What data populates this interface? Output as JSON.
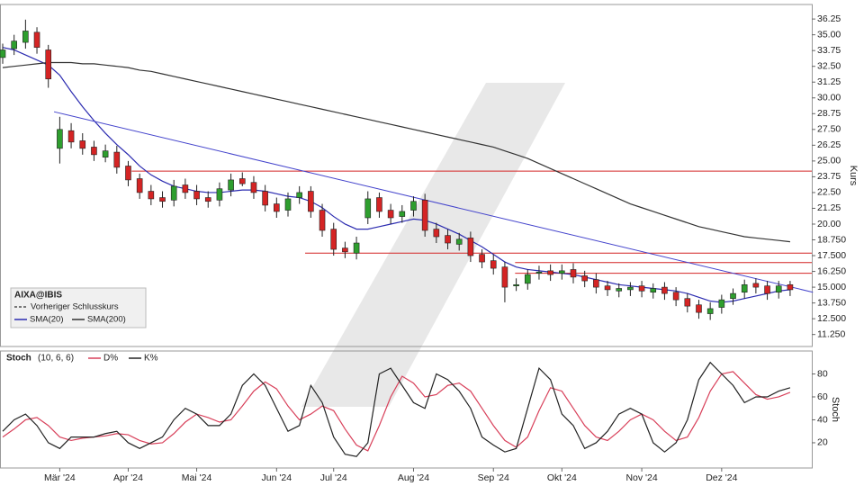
{
  "chart_data": [
    {
      "type": "candlestick",
      "title": "AIXA@IBIS",
      "y_label": "Kurs",
      "categories": [
        null,
        null,
        null,
        null,
        null,
        "Mär '24",
        null,
        null,
        null,
        null,
        null,
        "Apr '24",
        null,
        null,
        null,
        null,
        null,
        "Mai '24",
        null,
        null,
        null,
        null,
        null,
        null,
        "Jun '24",
        null,
        null,
        null,
        null,
        "Jul '24",
        null,
        null,
        null,
        null,
        null,
        null,
        "Aug '24",
        null,
        null,
        null,
        null,
        null,
        null,
        "Sep '24",
        null,
        null,
        null,
        null,
        null,
        "Okt '24",
        null,
        null,
        null,
        null,
        null,
        null,
        "Nov '24",
        null,
        null,
        null,
        null,
        null,
        null,
        "Dez '24",
        null,
        null,
        null,
        null,
        null,
        null
      ],
      "open": [
        33.2,
        33.9,
        34.4,
        35.2,
        33.8,
        26.0,
        27.4,
        26.6,
        26.1,
        25.3,
        25.7,
        24.6,
        23.6,
        22.6,
        22.1,
        21.9,
        23.1,
        22.6,
        22.1,
        21.9,
        22.7,
        23.6,
        23.3,
        22.6,
        21.6,
        21.1,
        22.1,
        22.6,
        21.1,
        19.6,
        18.1,
        17.7,
        20.5,
        22.1,
        21.1,
        20.6,
        21.1,
        21.9,
        19.6,
        19.1,
        18.4,
        18.9,
        17.6,
        17.1,
        16.6,
        15.1,
        15.3,
        16.1,
        16.3,
        16.1,
        16.4,
        15.9,
        15.6,
        15.1,
        14.7,
        14.8,
        15.1,
        14.6,
        15.0,
        14.6,
        14.1,
        13.6,
        12.9,
        13.4,
        14.1,
        14.6,
        15.3,
        15.1,
        14.6,
        15.2
      ],
      "high": [
        34.3,
        35.0,
        36.2,
        35.6,
        34.2,
        28.5,
        28.0,
        27.2,
        26.6,
        26.3,
        26.2,
        25.0,
        24.0,
        23.1,
        22.6,
        23.5,
        23.6,
        23.1,
        22.6,
        23.3,
        24.0,
        24.1,
        23.8,
        23.1,
        22.1,
        22.5,
        23.0,
        23.0,
        21.6,
        20.1,
        18.6,
        19.0,
        22.6,
        22.5,
        21.6,
        21.5,
        22.2,
        22.4,
        20.1,
        19.6,
        19.3,
        19.4,
        18.0,
        17.6,
        17.0,
        15.7,
        16.4,
        16.7,
        16.8,
        16.8,
        16.9,
        16.3,
        16.1,
        15.5,
        15.3,
        15.4,
        15.5,
        15.3,
        15.4,
        15.0,
        14.5,
        14.0,
        13.8,
        14.4,
        14.9,
        15.6,
        15.7,
        15.5,
        15.5,
        15.5
      ],
      "low": [
        32.7,
        33.4,
        33.9,
        33.5,
        30.8,
        24.8,
        26.0,
        25.5,
        25.0,
        24.9,
        24.0,
        23.0,
        22.0,
        21.5,
        21.3,
        21.4,
        22.0,
        21.5,
        21.3,
        21.4,
        22.2,
        23.0,
        22.0,
        21.0,
        20.5,
        20.6,
        21.6,
        20.5,
        19.0,
        17.5,
        17.3,
        17.2,
        20.0,
        20.5,
        20.0,
        20.1,
        20.6,
        19.0,
        18.5,
        18.0,
        17.9,
        17.0,
        16.5,
        16.0,
        13.8,
        14.7,
        14.8,
        15.6,
        15.5,
        15.6,
        15.3,
        15.0,
        14.5,
        14.3,
        14.2,
        14.3,
        14.2,
        14.1,
        14.0,
        13.5,
        13.0,
        12.5,
        12.4,
        12.9,
        13.6,
        14.1,
        14.5,
        14.0,
        14.1,
        14.3
      ],
      "close": [
        33.8,
        34.5,
        35.3,
        34.0,
        31.5,
        27.5,
        26.5,
        26.0,
        25.5,
        25.8,
        24.5,
        23.5,
        22.5,
        22.0,
        21.8,
        23.0,
        22.5,
        22.0,
        21.8,
        22.8,
        23.5,
        23.2,
        22.5,
        21.5,
        21.0,
        22.0,
        22.5,
        21.0,
        19.5,
        18.0,
        17.8,
        18.5,
        22.0,
        21.0,
        20.5,
        21.0,
        21.8,
        19.5,
        19.0,
        18.5,
        18.8,
        17.5,
        17.0,
        16.5,
        15.0,
        15.2,
        16.0,
        16.2,
        16.0,
        16.3,
        15.8,
        15.5,
        15.0,
        14.8,
        14.9,
        15.0,
        14.7,
        14.9,
        14.5,
        14.0,
        13.5,
        13.0,
        13.3,
        14.0,
        14.5,
        15.2,
        15.0,
        14.5,
        15.1,
        14.8
      ],
      "up_color": "#2e9e2e",
      "down_color": "#d42424",
      "reference_line": {
        "name": "Vorheriger Schlusskurs",
        "color": "#000000"
      },
      "series": [
        {
          "name": "SMA(20)",
          "color": "#2b2bb0",
          "values": [
            34.0,
            33.8,
            33.4,
            33.0,
            32.6,
            31.8,
            30.5,
            29.3,
            28.2,
            27.2,
            26.3,
            25.5,
            24.6,
            23.9,
            23.4,
            23.0,
            22.8,
            22.6,
            22.5,
            22.5,
            22.6,
            22.7,
            22.7,
            22.6,
            22.4,
            22.2,
            22.1,
            21.8,
            21.3,
            20.6,
            20.0,
            19.6,
            19.6,
            19.8,
            20.0,
            20.2,
            20.4,
            20.3,
            20.0,
            19.6,
            19.2,
            18.7,
            18.2,
            17.6,
            17.0,
            16.6,
            16.4,
            16.3,
            16.2,
            16.1,
            16.0,
            15.8,
            15.6,
            15.4,
            15.2,
            15.1,
            15.0,
            14.9,
            14.8,
            14.7,
            14.5,
            14.2,
            13.9,
            13.8,
            13.9,
            14.1,
            14.3,
            14.5,
            14.7,
            14.8
          ]
        },
        {
          "name": "SMA(200)",
          "color": "#333333",
          "values": [
            32.4,
            32.5,
            32.6,
            32.7,
            32.8,
            32.8,
            32.8,
            32.7,
            32.7,
            32.6,
            32.5,
            32.4,
            32.2,
            32.1,
            31.9,
            31.7,
            31.5,
            31.3,
            31.1,
            30.9,
            30.7,
            30.5,
            30.3,
            30.1,
            29.9,
            29.7,
            29.5,
            29.3,
            29.1,
            28.9,
            28.7,
            28.5,
            28.3,
            28.1,
            27.9,
            27.7,
            27.5,
            27.3,
            27.1,
            26.9,
            26.7,
            26.5,
            26.3,
            26.1,
            25.8,
            25.5,
            25.2,
            24.8,
            24.4,
            24.0,
            23.6,
            23.2,
            22.8,
            22.4,
            22.0,
            21.6,
            21.3,
            21.0,
            20.7,
            20.4,
            20.1,
            19.8,
            19.6,
            19.4,
            19.2,
            19.0,
            18.9,
            18.8,
            18.7,
            18.6
          ]
        }
      ],
      "hlines": [
        {
          "value": 24.2,
          "start": 11.3,
          "color": "#d42424"
        },
        {
          "value": 17.7,
          "start": 26.5,
          "color": "#d42424"
        },
        {
          "value": 16.95,
          "start": 44.9,
          "color": "#d42424"
        },
        {
          "value": 16.1,
          "start": 44.9,
          "color": "#d42424"
        }
      ],
      "trendline": {
        "x": [
          4.5,
          71
        ],
        "y": [
          28.9,
          14.6
        ],
        "color": "#4444cc"
      },
      "ylim": [
        10.3,
        37.4
      ],
      "yticks": [
        {
          "value": 11.25,
          "label": "11.250"
        },
        {
          "value": 12.5,
          "label": "12.500"
        },
        {
          "value": 13.75,
          "label": "13.750"
        },
        {
          "value": 15,
          "label": "15.000"
        },
        {
          "value": 16.25,
          "label": "16.250"
        },
        {
          "value": 17.5,
          "label": "17.500"
        },
        {
          "value": 18.75,
          "label": "18.750"
        },
        {
          "value": 20,
          "label": "20.00"
        },
        21.25,
        {
          "value": 22.5,
          "label": "22.50"
        },
        23.75,
        {
          "value": 25,
          "label": "25.00"
        },
        26.25,
        {
          "value": 27.5,
          "label": "27.50"
        },
        28.75,
        {
          "value": 30,
          "label": "30.00"
        },
        31.25,
        {
          "value": 32.5,
          "label": "32.50"
        },
        33.75,
        {
          "value": 35,
          "label": "35.00"
        },
        36.25
      ]
    },
    {
      "type": "line",
      "title": "Stoch",
      "params": "(10, 6, 6)",
      "y_label": "Stoch",
      "series": [
        {
          "name": "D%",
          "color": "#d8405a",
          "values": [
            25,
            32,
            40,
            42,
            35,
            25,
            22,
            24,
            25,
            26,
            28,
            27,
            22,
            19,
            20,
            28,
            38,
            45,
            42,
            38,
            40,
            52,
            65,
            73,
            67,
            52,
            40,
            45,
            52,
            48,
            32,
            18,
            13,
            35,
            60,
            78,
            72,
            60,
            62,
            70,
            72,
            65,
            50,
            35,
            22,
            16,
            25,
            48,
            68,
            65,
            50,
            35,
            25,
            22,
            30,
            40,
            45,
            40,
            30,
            22,
            25,
            42,
            65,
            80,
            82,
            72,
            62,
            58,
            60,
            64
          ]
        },
        {
          "name": "K%",
          "color": "#222222",
          "values": [
            30,
            40,
            45,
            35,
            20,
            15,
            25,
            25,
            25,
            28,
            30,
            20,
            15,
            20,
            25,
            40,
            50,
            45,
            35,
            35,
            45,
            70,
            80,
            70,
            50,
            30,
            35,
            70,
            55,
            25,
            10,
            8,
            20,
            80,
            85,
            70,
            55,
            50,
            80,
            75,
            65,
            50,
            25,
            18,
            12,
            15,
            50,
            85,
            75,
            45,
            35,
            15,
            20,
            30,
            45,
            50,
            45,
            20,
            12,
            20,
            40,
            75,
            90,
            80,
            70,
            55,
            60,
            60,
            65,
            68
          ]
        }
      ],
      "ylim": [
        -2,
        100
      ],
      "yticks": [
        20,
        40,
        60,
        80
      ]
    }
  ]
}
